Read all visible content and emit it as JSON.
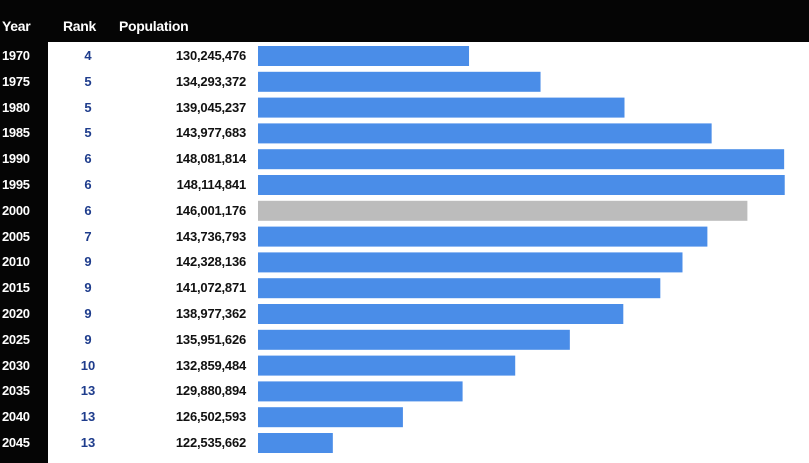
{
  "headers": {
    "year": "Year",
    "rank": "Rank",
    "population": "Population"
  },
  "colors": {
    "bar": "#4a8de8",
    "highlight": "#bcbcbc",
    "header_bg": "#050505",
    "rank_text": "#1e3c8c"
  },
  "chart_data": {
    "type": "bar",
    "orientation": "horizontal",
    "categories": [
      "1970",
      "1975",
      "1980",
      "1985",
      "1990",
      "1995",
      "2000",
      "2005",
      "2010",
      "2015",
      "2020",
      "2025",
      "2030",
      "2035",
      "2040",
      "2045"
    ],
    "ranks": [
      "4",
      "5",
      "5",
      "5",
      "6",
      "6",
      "6",
      "7",
      "9",
      "9",
      "9",
      "9",
      "10",
      "13",
      "13",
      "13"
    ],
    "values": [
      130245476,
      134293372,
      139045237,
      143977683,
      148081814,
      148114841,
      146001176,
      143736793,
      142328136,
      141072871,
      138977362,
      135951626,
      132859484,
      129880894,
      126502593,
      122535662
    ],
    "labels": [
      "130,245,476",
      "134,293,372",
      "139,045,237",
      "143,977,683",
      "148,081,814",
      "148,114,841",
      "146,001,176",
      "143,736,793",
      "142,328,136",
      "141,072,871",
      "138,977,362",
      "135,951,626",
      "132,859,484",
      "129,880,894",
      "126,502,593",
      "122,535,662"
    ],
    "highlight_index": 6,
    "xlim": [
      118300000,
      148300000
    ],
    "grid": false
  }
}
